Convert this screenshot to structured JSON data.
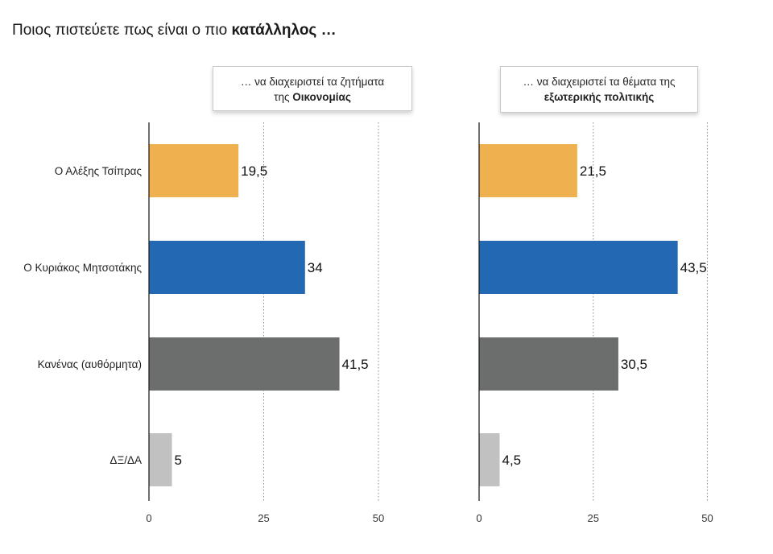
{
  "title": {
    "prefix": "Ποιος πιστεύετε πως είναι ο πιο ",
    "bold": "κατάλληλος …"
  },
  "categories": [
    "Ο Αλέξης Τσίπρας",
    "Ο Κυριάκος Μητσοτάκης",
    "Κανένας (αυθόρμητα)",
    "ΔΞ/ΔΑ"
  ],
  "colors": [
    "#efb04f",
    "#2368b3",
    "#6b6e6d",
    "#c0c1c0"
  ],
  "chart_data": [
    {
      "type": "bar",
      "orientation": "horizontal",
      "title_line1": "… να διαχειριστεί τα ζητήματα",
      "title_line2_prefix": "της ",
      "title_line2_bold": "Οικονομίας",
      "categories": [
        "Ο Αλέξης Τσίπρας",
        "Ο Κυριάκος Μητσοτάκης",
        "Κανένας (αυθόρμητα)",
        "ΔΞ/ΔΑ"
      ],
      "values": [
        19.5,
        34,
        41.5,
        5
      ],
      "value_labels": [
        "19,5",
        "34",
        "41,5",
        "5"
      ],
      "xlim": [
        0,
        50
      ],
      "ticks": [
        0,
        25,
        50
      ],
      "tick_labels": [
        "0",
        "25",
        "50"
      ],
      "grid": "dotted vertical at 25 and 50"
    },
    {
      "type": "bar",
      "orientation": "horizontal",
      "title_line1": "… να διαχειριστεί τα θέματα της",
      "title_line2_prefix": "",
      "title_line2_bold": "εξωτερικής πολιτικής",
      "categories": [
        "Ο Αλέξης Τσίπρας",
        "Ο Κυριάκος Μητσοτάκης",
        "Κανένας (αυθόρμητα)",
        "ΔΞ/ΔΑ"
      ],
      "values": [
        21.5,
        43.5,
        30.5,
        4.5
      ],
      "value_labels": [
        "21,5",
        "43,5",
        "30,5",
        "4,5"
      ],
      "xlim": [
        0,
        50
      ],
      "ticks": [
        0,
        25,
        50
      ],
      "tick_labels": [
        "0",
        "25",
        "50"
      ],
      "grid": "dotted vertical at 25 and 50"
    }
  ]
}
